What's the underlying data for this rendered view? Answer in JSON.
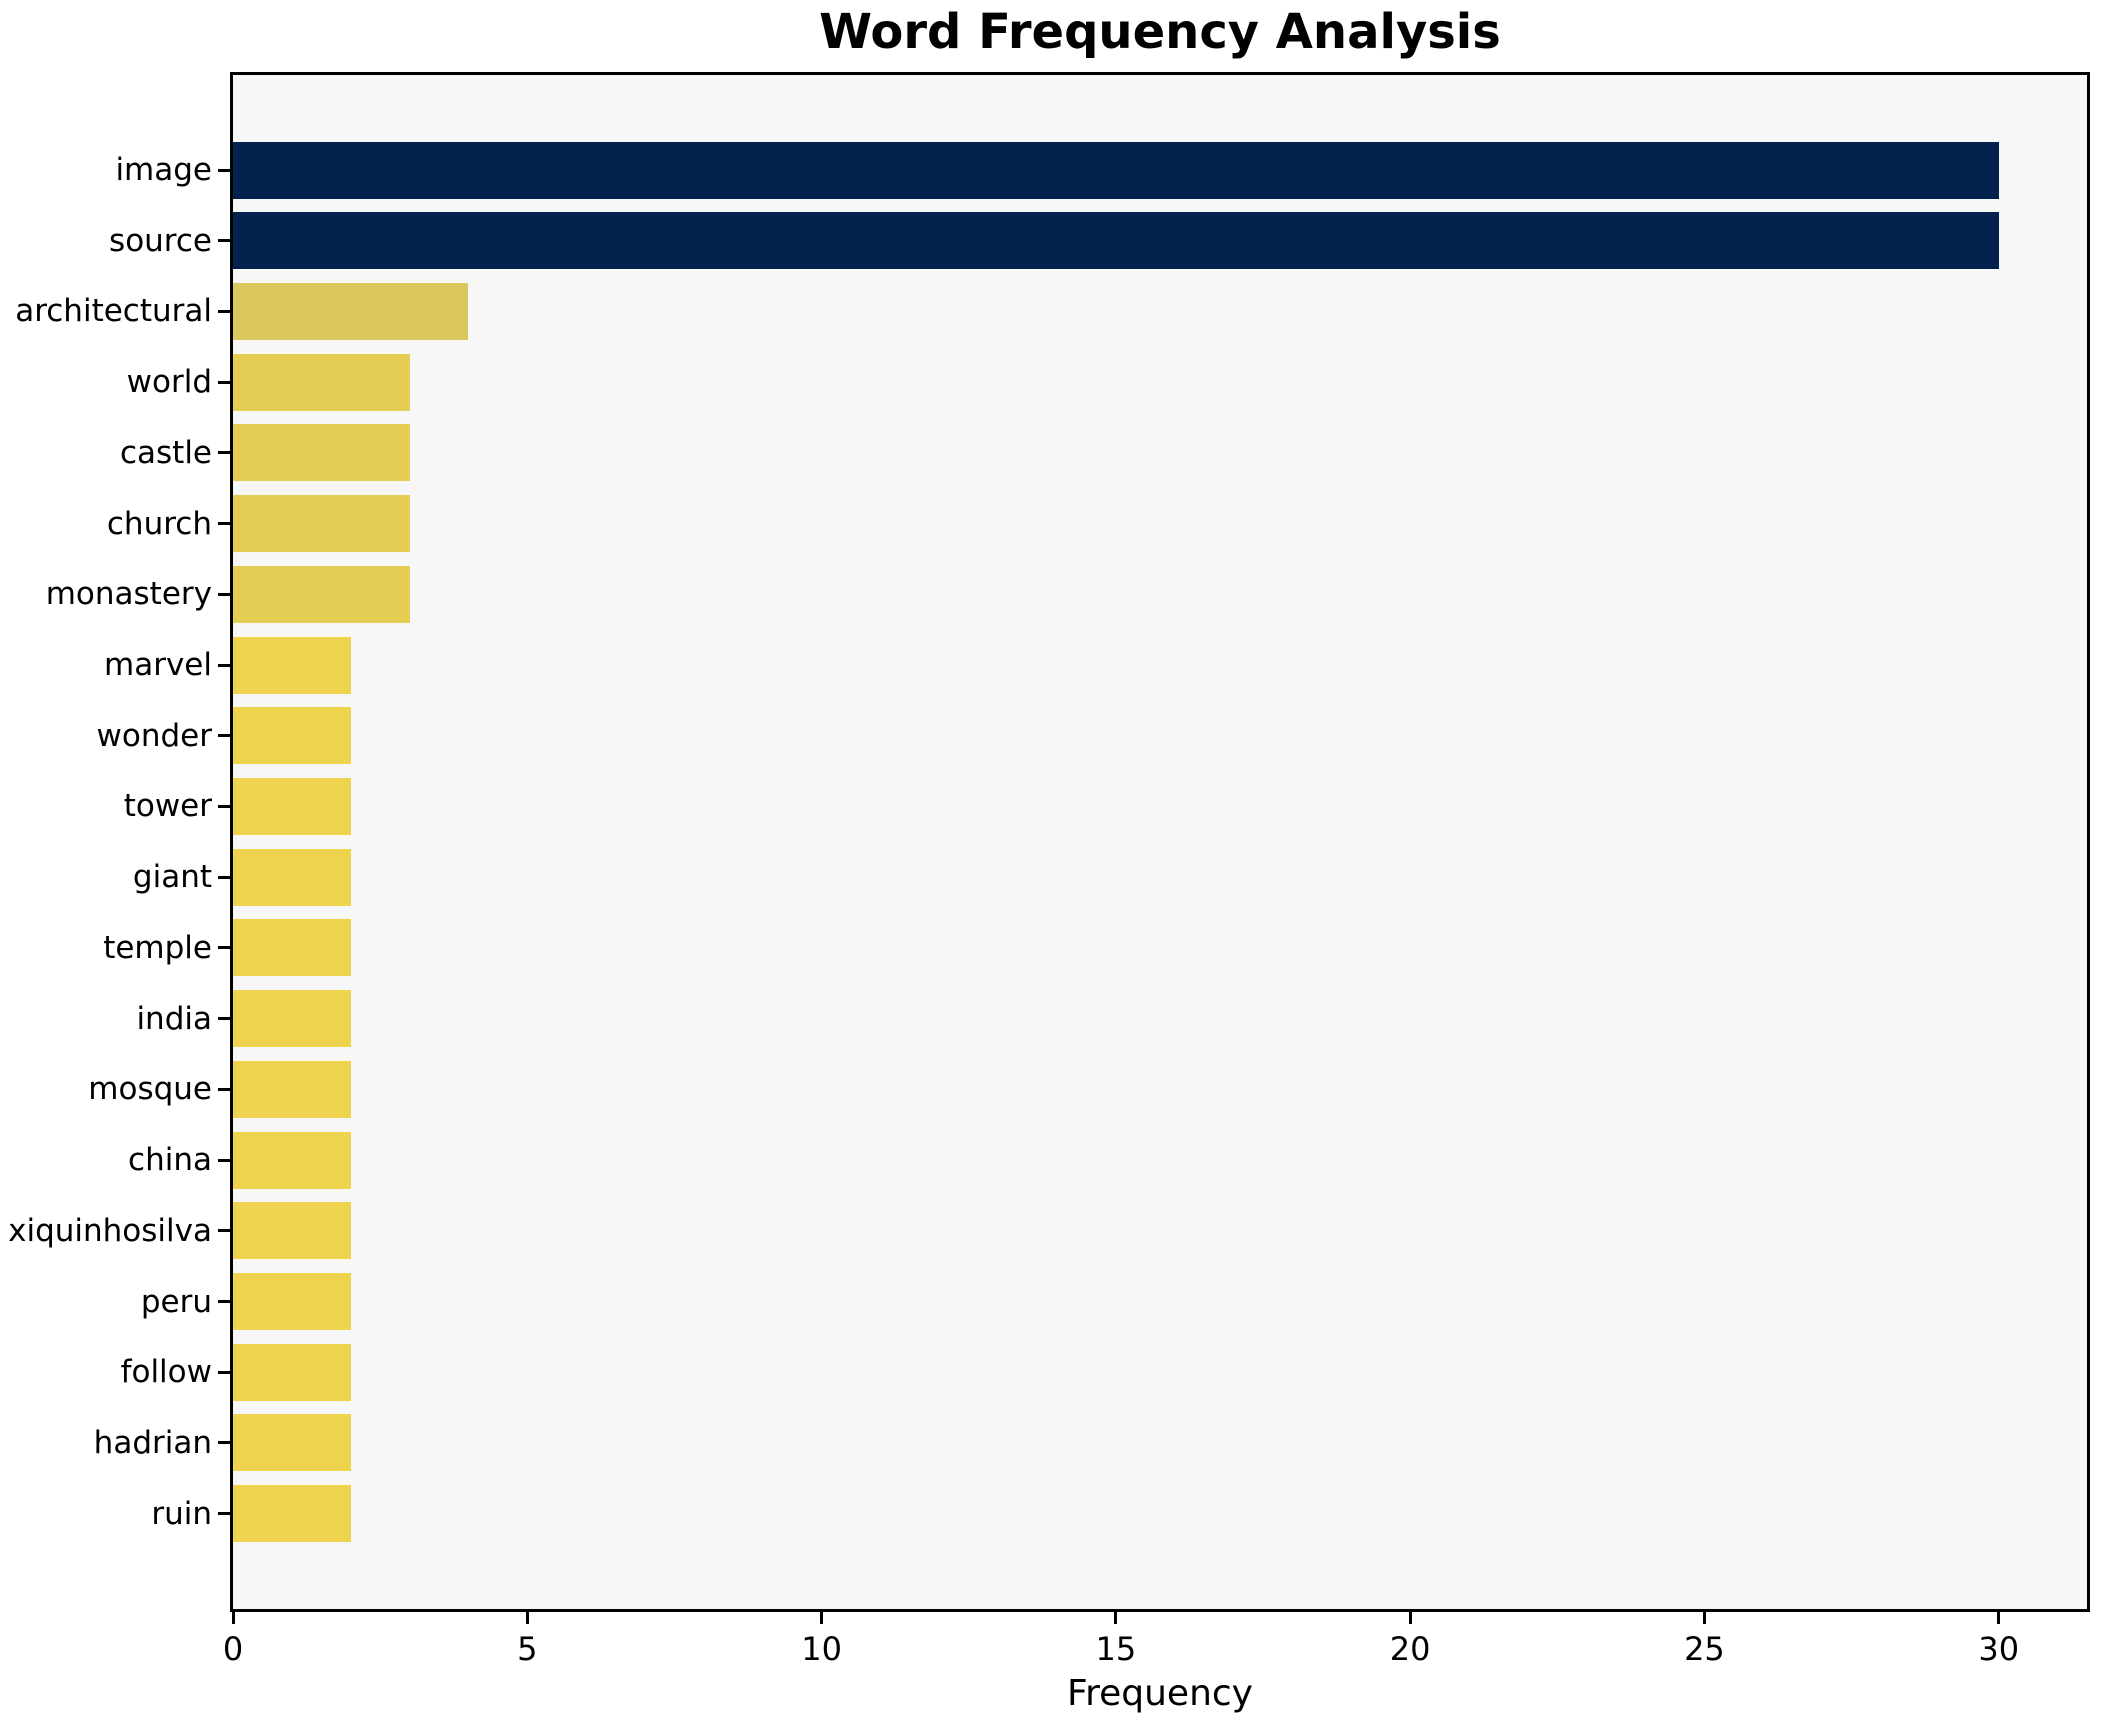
{
  "chart_data": {
    "type": "bar",
    "orientation": "horizontal",
    "title": "Word Frequency Analysis",
    "xlabel": "Frequency",
    "ylabel": "",
    "categories": [
      "image",
      "source",
      "architectural",
      "world",
      "castle",
      "church",
      "monastery",
      "marvel",
      "wonder",
      "tower",
      "giant",
      "temple",
      "india",
      "mosque",
      "china",
      "xiquinhosilva",
      "peru",
      "follow",
      "hadrian",
      "ruin"
    ],
    "values": [
      30,
      30,
      4,
      3,
      3,
      3,
      3,
      2,
      2,
      2,
      2,
      2,
      2,
      2,
      2,
      2,
      2,
      2,
      2,
      2
    ],
    "bar_colors": [
      "#03234e",
      "#03234e",
      "#d9c65c",
      "#e3cd52",
      "#e3cd52",
      "#e3cd52",
      "#e3cd52",
      "#eed44e",
      "#eed44e",
      "#eed44e",
      "#eed44e",
      "#eed44e",
      "#eed44e",
      "#eed44e",
      "#eed44e",
      "#eed44e",
      "#eed44e",
      "#eed44e",
      "#eed44e",
      "#eed44e"
    ],
    "xticks": [
      0,
      5,
      10,
      15,
      20,
      25,
      30
    ],
    "xlim": [
      0,
      31.5
    ],
    "grid": false,
    "legend": null,
    "colors": {
      "high_frequency_bar": "#03234e",
      "mid_frequency_bar_4": "#d9c65c",
      "mid_frequency_bar_3": "#e3cd52",
      "low_frequency_bar_2": "#eed44e",
      "plot_background": "#f7f7f7",
      "figure_background": "#ffffff",
      "text": "#000000"
    }
  }
}
